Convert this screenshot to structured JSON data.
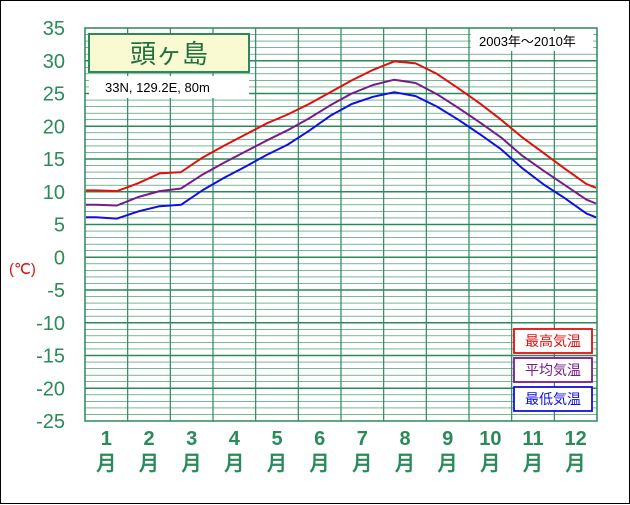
{
  "chart_data": {
    "type": "line",
    "title": "頭ヶ島",
    "subtitle": "33N, 129.2E, 80m",
    "period": "2003年～2010年",
    "ylabel": "(℃)",
    "ylim": [
      -25,
      35
    ],
    "yticks": [
      "35",
      "30",
      "25",
      "20",
      "15",
      "10",
      "5",
      "0",
      "-5",
      "-10",
      "-15",
      "-20",
      "-25"
    ],
    "months": [
      {
        "num": "1",
        "unit": "月"
      },
      {
        "num": "2",
        "unit": "月"
      },
      {
        "num": "3",
        "unit": "月"
      },
      {
        "num": "4",
        "unit": "月"
      },
      {
        "num": "5",
        "unit": "月"
      },
      {
        "num": "6",
        "unit": "月"
      },
      {
        "num": "7",
        "unit": "月"
      },
      {
        "num": "8",
        "unit": "月"
      },
      {
        "num": "9",
        "unit": "月"
      },
      {
        "num": "10",
        "unit": "月"
      },
      {
        "num": "11",
        "unit": "月"
      },
      {
        "num": "12",
        "unit": "月"
      }
    ],
    "x_unit": "half-month",
    "x": [
      "1月上",
      "1月下",
      "2月上",
      "2月下",
      "3月上",
      "3月下",
      "4月上",
      "4月下",
      "5月上",
      "5月下",
      "6月上",
      "6月下",
      "7月上",
      "7月下",
      "8月上",
      "8月下",
      "9月上",
      "9月下",
      "10月上",
      "10月下",
      "11月上",
      "11月下",
      "12月上",
      "12月下"
    ],
    "series": [
      {
        "name": "最高気温",
        "color": "#e01010",
        "values": [
          10.2,
          10.1,
          11.3,
          12.8,
          13.0,
          15.2,
          17.0,
          18.7,
          20.4,
          21.8,
          23.4,
          25.2,
          27.0,
          28.6,
          29.9,
          29.6,
          28.0,
          25.8,
          23.5,
          21.0,
          18.3,
          15.9,
          13.5,
          11.2
        ]
      },
      {
        "name": "平均気温",
        "color": "#7a1a8a",
        "values": [
          8.0,
          7.9,
          9.2,
          10.1,
          10.5,
          12.6,
          14.4,
          16.1,
          17.8,
          19.4,
          21.2,
          23.2,
          25.0,
          26.3,
          27.1,
          26.6,
          24.9,
          22.8,
          20.6,
          18.3,
          15.5,
          13.2,
          11.0,
          8.8
        ]
      },
      {
        "name": "最低気温",
        "color": "#1010e0",
        "values": [
          6.1,
          5.9,
          7.0,
          7.8,
          8.0,
          10.2,
          12.1,
          13.8,
          15.6,
          17.2,
          19.3,
          21.6,
          23.4,
          24.5,
          25.2,
          24.6,
          23.0,
          21.0,
          18.8,
          16.5,
          13.6,
          11.1,
          9.0,
          6.7
        ]
      }
    ],
    "grid": true,
    "legend_position": "bottom-right"
  }
}
